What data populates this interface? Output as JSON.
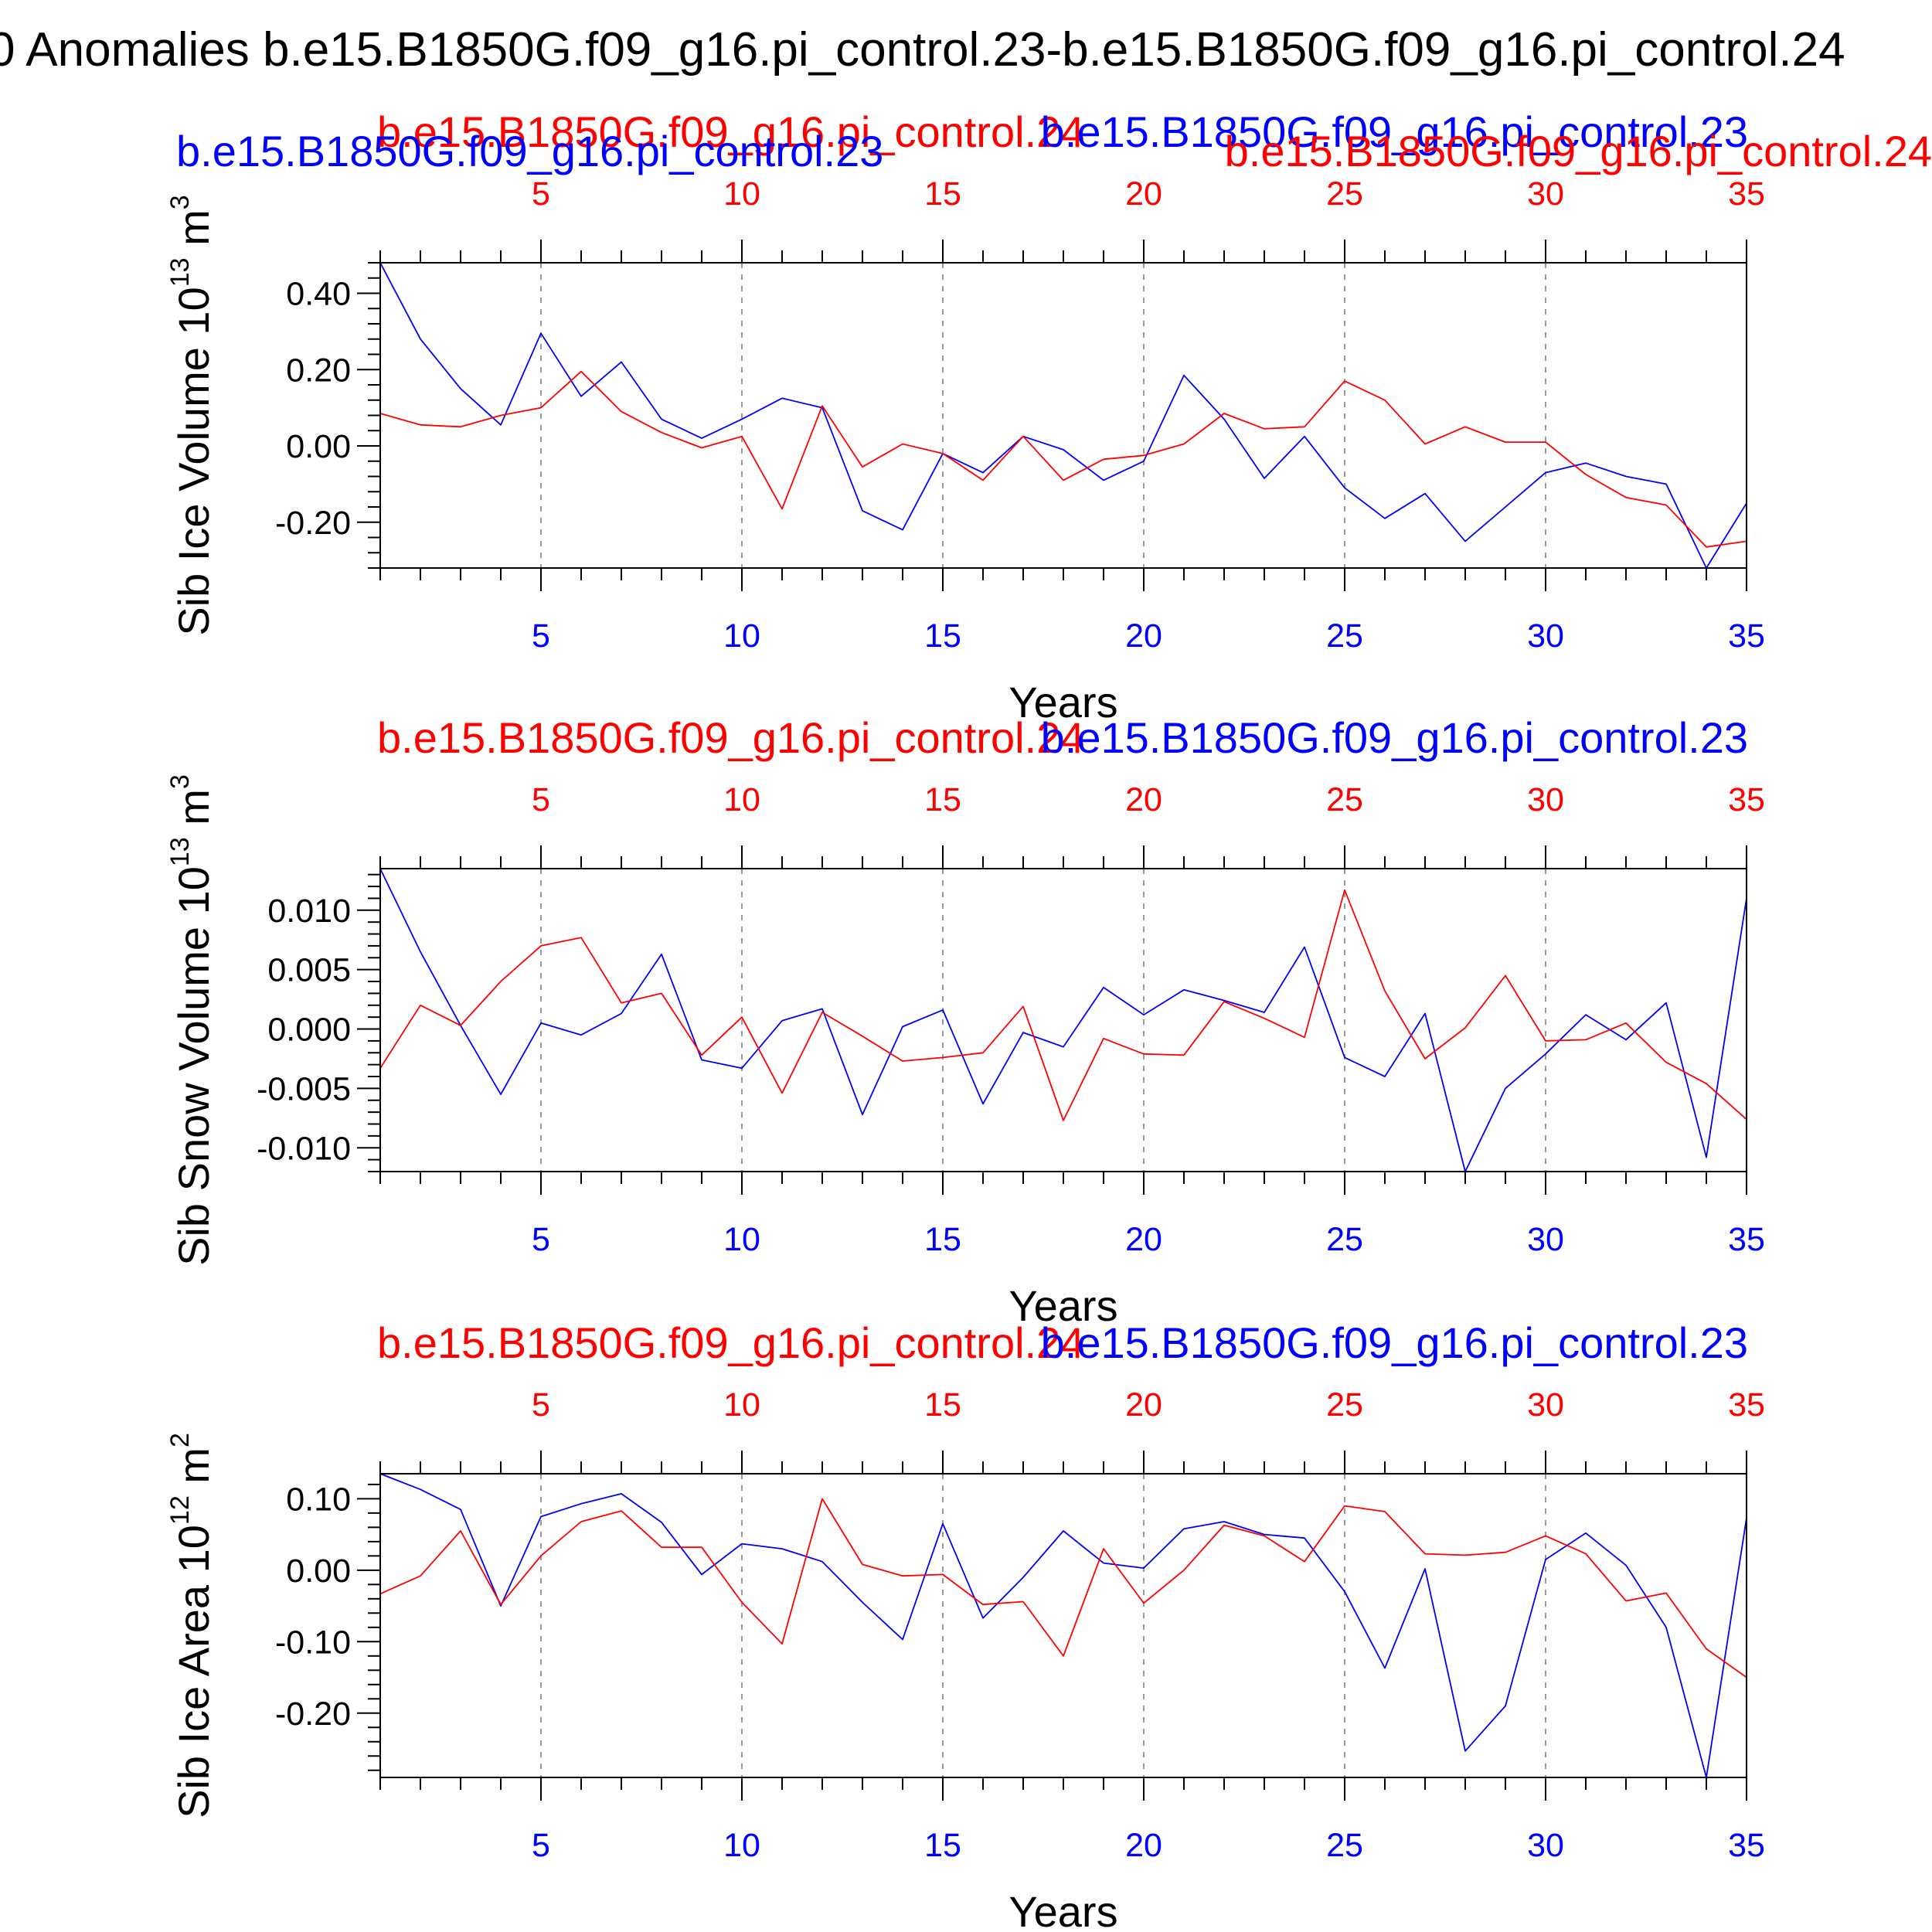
{
  "suptitle": "0 Anomalies b.e15.B1850G.f09_g16.pi_control.23-b.e15.B1850G.f09_g16.pi_control.24",
  "colors": {
    "blue": "#0000ff",
    "red": "#ff0000",
    "axis": "#000000",
    "grid": "#9a9a9a"
  },
  "chart_data": [
    {
      "type": "line",
      "ylabel": "Sib Ice Volume 10",
      "ylabel_exp": "13",
      "ylabel_unit": " m",
      "ylabel_unit_exp": "3",
      "xlabel": "Years",
      "bottom_title": "b.e15.B1850G.f09_g16.pi_control.23",
      "top_title": "b.e15.B1850G.f09_g16.pi_control.24",
      "blue_title_over": "b.e15.B1850G.f09_g16.pi_control.23",
      "red_title_over": "b.e15.B1850G.f09_g16.pi_control.24",
      "xlim": [
        1,
        35
      ],
      "ylim": [
        -0.32,
        0.48
      ],
      "xticks": [
        5,
        10,
        15,
        20,
        25,
        30,
        35
      ],
      "xtick_labels": [
        "5",
        "10",
        "15",
        "20",
        "25",
        "30",
        "35"
      ],
      "yticks": [
        -0.2,
        0.0,
        0.2,
        0.4
      ],
      "ytick_labels": [
        "-0.20",
        "0.00",
        "0.20",
        "0.40"
      ],
      "yminor_step": 0.04,
      "grid": "x-dashed",
      "series": [
        {
          "name": "b.e15.B1850G.f09_g16.pi_control.23",
          "color": "blue",
          "x": [
            1,
            2,
            3,
            4,
            5,
            6,
            7,
            8,
            9,
            10,
            11,
            12,
            13,
            14,
            15,
            16,
            17,
            18,
            19,
            20,
            21,
            22,
            23,
            24,
            25,
            26,
            27,
            28,
            29,
            30,
            31,
            32,
            33,
            34,
            35
          ],
          "y": [
            0.48,
            0.28,
            0.15,
            0.055,
            0.295,
            0.13,
            0.22,
            0.07,
            0.02,
            0.07,
            0.125,
            0.1,
            -0.17,
            -0.22,
            -0.02,
            -0.07,
            0.025,
            -0.01,
            -0.09,
            -0.04,
            0.185,
            0.07,
            -0.085,
            0.025,
            -0.11,
            -0.19,
            -0.125,
            -0.25,
            -0.16,
            -0.07,
            -0.045,
            -0.08,
            -0.1,
            -0.32,
            -0.15
          ]
        },
        {
          "name": "b.e15.B1850G.f09_g16.pi_control.24",
          "color": "red",
          "x": [
            1,
            2,
            3,
            4,
            5,
            6,
            7,
            8,
            9,
            10,
            11,
            12,
            13,
            14,
            15,
            16,
            17,
            18,
            19,
            20,
            21,
            22,
            23,
            24,
            25,
            26,
            27,
            28,
            29,
            30,
            31,
            32,
            33,
            34,
            35
          ],
          "y": [
            0.085,
            0.055,
            0.05,
            0.08,
            0.1,
            0.195,
            0.09,
            0.035,
            -0.005,
            0.025,
            -0.165,
            0.105,
            -0.055,
            0.005,
            -0.02,
            -0.09,
            0.025,
            -0.09,
            -0.035,
            -0.025,
            0.005,
            0.085,
            0.045,
            0.05,
            0.17,
            0.12,
            0.005,
            0.05,
            0.01,
            0.01,
            -0.075,
            -0.135,
            -0.155,
            -0.265,
            -0.25
          ]
        }
      ]
    },
    {
      "type": "line",
      "ylabel": "Sib Snow Volume 10",
      "ylabel_exp": "13",
      "ylabel_unit": " m",
      "ylabel_unit_exp": "3",
      "xlabel": "Years",
      "bottom_title": "",
      "top_title": "",
      "blue_title_over": "b.e15.B1850G.f09_g16.pi_control.23",
      "red_title_over": "b.e15.B1850G.f09_g16.pi_control.24",
      "xlim": [
        1,
        35
      ],
      "ylim": [
        -0.012,
        0.0135
      ],
      "xticks": [
        5,
        10,
        15,
        20,
        25,
        30,
        35
      ],
      "xtick_labels": [
        "5",
        "10",
        "15",
        "20",
        "25",
        "30",
        "35"
      ],
      "yticks": [
        -0.01,
        -0.005,
        0.0,
        0.005,
        0.01
      ],
      "ytick_labels": [
        "-0.010",
        "-0.005",
        "0.000",
        "0.005",
        "0.010"
      ],
      "yminor_step": 0.001,
      "grid": "x-dashed",
      "series": [
        {
          "name": "b.e15.B1850G.f09_g16.pi_control.23",
          "color": "blue",
          "x": [
            1,
            2,
            3,
            4,
            5,
            6,
            7,
            8,
            9,
            10,
            11,
            12,
            13,
            14,
            15,
            16,
            17,
            18,
            19,
            20,
            21,
            22,
            23,
            24,
            25,
            26,
            27,
            28,
            29,
            30,
            31,
            32,
            33,
            34,
            35
          ],
          "y": [
            0.0135,
            0.0065,
            0.0003,
            -0.0055,
            0.0005,
            -0.0005,
            0.0013,
            0.0063,
            -0.0026,
            -0.0033,
            0.0007,
            0.0017,
            -0.0072,
            0.0002,
            0.0016,
            -0.0063,
            -0.0003,
            -0.0015,
            0.0035,
            0.0012,
            0.0033,
            0.0024,
            0.0014,
            0.0069,
            -0.0024,
            -0.004,
            0.0013,
            -0.012,
            -0.005,
            -0.0021,
            0.0012,
            -0.0009,
            0.0022,
            -0.0108,
            0.011
          ]
        },
        {
          "name": "b.e15.B1850G.f09_g16.pi_control.24",
          "color": "red",
          "x": [
            1,
            2,
            3,
            4,
            5,
            6,
            7,
            8,
            9,
            10,
            11,
            12,
            13,
            14,
            15,
            16,
            17,
            18,
            19,
            20,
            21,
            22,
            23,
            24,
            25,
            26,
            27,
            28,
            29,
            30,
            31,
            32,
            33,
            34,
            35
          ],
          "y": [
            -0.0033,
            0.002,
            0.0003,
            0.004,
            0.007,
            0.0077,
            0.0022,
            0.003,
            -0.0022,
            0.001,
            -0.0054,
            0.0014,
            -0.0006,
            -0.0027,
            -0.0024,
            -0.002,
            0.0019,
            -0.0077,
            -0.0008,
            -0.0021,
            -0.0022,
            0.0023,
            0.0009,
            -0.0007,
            0.0117,
            0.0032,
            -0.0025,
            0.0001,
            0.0045,
            -0.001,
            -0.0009,
            0.0005,
            -0.0028,
            -0.0046,
            -0.0076
          ]
        }
      ]
    },
    {
      "type": "line",
      "ylabel": "Sib Ice Area 10",
      "ylabel_exp": "12",
      "ylabel_unit": " m",
      "ylabel_unit_exp": "2",
      "xlabel": "Years",
      "bottom_title": "",
      "top_title": "",
      "blue_title_over": "b.e15.B1850G.f09_g16.pi_control.23",
      "red_title_over": "b.e15.B1850G.f09_g16.pi_control.24",
      "xlim": [
        1,
        35
      ],
      "ylim": [
        -0.29,
        0.135
      ],
      "xticks": [
        5,
        10,
        15,
        20,
        25,
        30,
        35
      ],
      "xtick_labels": [
        "5",
        "10",
        "15",
        "20",
        "25",
        "30",
        "35"
      ],
      "yticks": [
        -0.2,
        -0.1,
        0.0,
        0.1
      ],
      "ytick_labels": [
        "-0.20",
        "-0.10",
        "0.00",
        "0.10"
      ],
      "yminor_step": 0.02,
      "grid": "x-dashed",
      "series": [
        {
          "name": "b.e15.B1850G.f09_g16.pi_control.23",
          "color": "blue",
          "x": [
            1,
            2,
            3,
            4,
            5,
            6,
            7,
            8,
            9,
            10,
            11,
            12,
            13,
            14,
            15,
            16,
            17,
            18,
            19,
            20,
            21,
            22,
            23,
            24,
            25,
            26,
            27,
            28,
            29,
            30,
            31,
            32,
            33,
            34,
            35
          ],
          "y": [
            0.135,
            0.113,
            0.085,
            -0.05,
            0.075,
            0.093,
            0.107,
            0.067,
            -0.006,
            0.037,
            0.03,
            0.012,
            -0.045,
            -0.097,
            0.065,
            -0.067,
            -0.01,
            0.055,
            0.01,
            0.003,
            0.058,
            0.068,
            0.05,
            0.045,
            -0.03,
            -0.137,
            0.002,
            -0.253,
            -0.19,
            0.015,
            0.052,
            0.007,
            -0.08,
            -0.29,
            0.073
          ]
        },
        {
          "name": "b.e15.B1850G.f09_g16.pi_control.24",
          "color": "red",
          "x": [
            1,
            2,
            3,
            4,
            5,
            6,
            7,
            8,
            9,
            10,
            11,
            12,
            13,
            14,
            15,
            16,
            17,
            18,
            19,
            20,
            21,
            22,
            23,
            24,
            25,
            26,
            27,
            28,
            29,
            30,
            31,
            32,
            33,
            34,
            35
          ],
          "y": [
            -0.033,
            -0.008,
            0.055,
            -0.048,
            0.02,
            0.068,
            0.083,
            0.032,
            0.032,
            -0.045,
            -0.103,
            0.1,
            0.008,
            -0.008,
            -0.006,
            -0.048,
            -0.044,
            -0.12,
            0.03,
            -0.046,
            0.0,
            0.063,
            0.048,
            0.012,
            0.09,
            0.082,
            0.023,
            0.021,
            0.025,
            0.048,
            0.023,
            -0.043,
            -0.032,
            -0.11,
            -0.15
          ]
        }
      ]
    }
  ]
}
